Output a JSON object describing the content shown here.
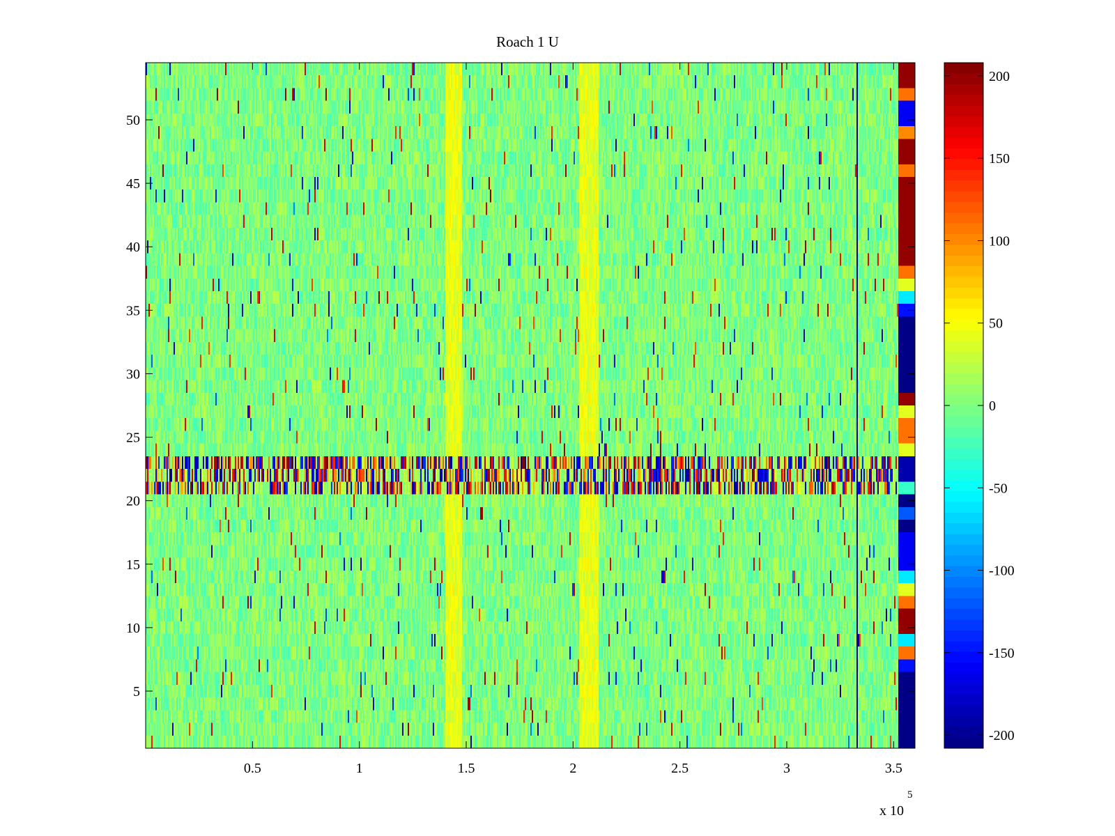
{
  "chart_data": {
    "type": "heatmap",
    "title": "Roach 1 U",
    "xlabel": "",
    "ylabel": "",
    "x_exponent_label": "x 10",
    "x_exponent": "5",
    "x_scale": 100000,
    "xlim": [
      0,
      360000
    ],
    "ylim": [
      0.5,
      54.5
    ],
    "rows": 54,
    "colormap": "jet",
    "clim": [
      -208,
      208
    ],
    "x_ticks": [
      {
        "value": 50000,
        "label": "0.5"
      },
      {
        "value": 100000,
        "label": "1"
      },
      {
        "value": 150000,
        "label": "1.5"
      },
      {
        "value": 200000,
        "label": "2"
      },
      {
        "value": 250000,
        "label": "2.5"
      },
      {
        "value": 300000,
        "label": "3"
      },
      {
        "value": 350000,
        "label": "3.5"
      }
    ],
    "y_ticks": [
      {
        "value": 5,
        "label": "5"
      },
      {
        "value": 10,
        "label": "10"
      },
      {
        "value": 15,
        "label": "15"
      },
      {
        "value": 20,
        "label": "20"
      },
      {
        "value": 25,
        "label": "25"
      },
      {
        "value": 30,
        "label": "30"
      },
      {
        "value": 35,
        "label": "35"
      },
      {
        "value": 40,
        "label": "40"
      },
      {
        "value": 45,
        "label": "45"
      },
      {
        "value": 50,
        "label": "50"
      }
    ],
    "colorbar_ticks": [
      {
        "value": 200,
        "label": "200"
      },
      {
        "value": 150,
        "label": "150"
      },
      {
        "value": 100,
        "label": "100"
      },
      {
        "value": 50,
        "label": "50"
      },
      {
        "value": 0,
        "label": "0"
      },
      {
        "value": -50,
        "label": "-50"
      },
      {
        "value": -100,
        "label": "-100"
      },
      {
        "value": -150,
        "label": "-150"
      },
      {
        "value": -200,
        "label": "-200"
      }
    ],
    "background_value_range": [
      -25,
      25
    ],
    "bands": [
      {
        "x_range": [
          140000,
          148000
        ],
        "y_range": [
          0.5,
          54.5
        ],
        "value": 40
      },
      {
        "x_range": [
          203000,
          212000
        ],
        "y_range": [
          0.5,
          54.5
        ],
        "value": 40
      }
    ],
    "outlier_rows": [
      {
        "y_range": [
          21,
          23.5
        ],
        "value_range": [
          -208,
          208
        ]
      }
    ],
    "vertical_lines": [
      {
        "x": 333000,
        "value": -200
      }
    ],
    "right_column": {
      "x_range": [
        352000,
        361000
      ],
      "segments": [
        {
          "y_range": [
            52.5,
            54.5
          ],
          "value": 200
        },
        {
          "y_range": [
            51,
            52.5
          ],
          "value": 110
        },
        {
          "y_range": [
            49,
            51
          ],
          "value": -160
        },
        {
          "y_range": [
            48,
            49
          ],
          "value": 100
        },
        {
          "y_range": [
            46,
            48
          ],
          "value": 200
        },
        {
          "y_range": [
            45,
            46
          ],
          "value": 110
        },
        {
          "y_range": [
            38,
            45
          ],
          "value": 200
        },
        {
          "y_range": [
            37,
            38
          ],
          "value": 110
        },
        {
          "y_range": [
            36,
            37
          ],
          "value": 40
        },
        {
          "y_range": [
            35,
            36
          ],
          "value": -60
        },
        {
          "y_range": [
            34,
            35
          ],
          "value": -150
        },
        {
          "y_range": [
            28,
            34
          ],
          "value": -205
        },
        {
          "y_range": [
            27,
            28
          ],
          "value": 200
        },
        {
          "y_range": [
            26,
            27
          ],
          "value": 40
        },
        {
          "y_range": [
            24,
            26
          ],
          "value": 110
        },
        {
          "y_range": [
            23,
            24
          ],
          "value": 40
        },
        {
          "y_range": [
            21,
            23
          ],
          "value": -190
        },
        {
          "y_range": [
            20,
            21
          ],
          "value": -30
        },
        {
          "y_range": [
            19,
            20
          ],
          "value": -205
        },
        {
          "y_range": [
            18,
            19
          ],
          "value": -120
        },
        {
          "y_range": [
            17,
            18
          ],
          "value": -205
        },
        {
          "y_range": [
            14,
            17
          ],
          "value": -160
        },
        {
          "y_range": [
            13,
            14
          ],
          "value": -60
        },
        {
          "y_range": [
            12,
            13
          ],
          "value": 40
        },
        {
          "y_range": [
            11,
            12
          ],
          "value": 110
        },
        {
          "y_range": [
            9,
            11
          ],
          "value": 200
        },
        {
          "y_range": [
            8,
            9
          ],
          "value": -60
        },
        {
          "y_range": [
            7,
            8
          ],
          "value": 110
        },
        {
          "y_range": [
            6,
            7
          ],
          "value": -150
        },
        {
          "y_range": [
            0.5,
            6
          ],
          "value": -205
        }
      ]
    }
  }
}
